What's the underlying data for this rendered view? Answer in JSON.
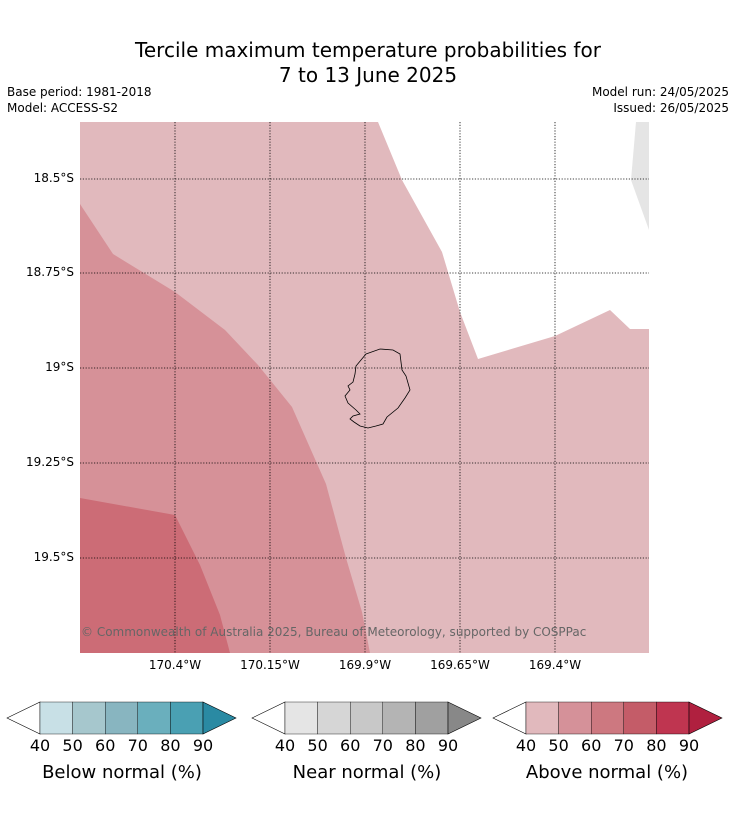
{
  "title_line1": "Tercile maximum temperature probabilities for",
  "title_line2": "7 to 13 June 2025",
  "base_period": "Base period: 1981-2018",
  "model": "Model: ACCESS-S2",
  "model_run": "Model run: 24/05/2025",
  "issued": "Issued: 26/05/2025",
  "lat_labels": [
    "18.5°S",
    "18.75°S",
    "19°S",
    "19.25°S",
    "19.5°S"
  ],
  "lon_labels": [
    "170.4°W",
    "170.15°W",
    "169.9°W",
    "169.65°W",
    "169.4°W"
  ],
  "copyright": "© Commonwealth of Australia 2025, Bureau of Meteorology, supported by COSPPac",
  "colorbars": [
    {
      "label": "Below normal (%)",
      "ticks": [
        "40",
        "50",
        "60",
        "70",
        "80",
        "90"
      ],
      "colors": [
        "#c8e0e6",
        "#a6c7cd",
        "#88b5c0",
        "#6aafbd",
        "#4aa0b3",
        "#2a8aa3"
      ]
    },
    {
      "label": "Near normal (%)",
      "ticks": [
        "40",
        "50",
        "60",
        "70",
        "80",
        "90"
      ],
      "colors": [
        "#e5e5e5",
        "#d6d6d6",
        "#c8c8c8",
        "#b4b4b4",
        "#a0a0a0",
        "#888888"
      ]
    },
    {
      "label": "Above normal (%)",
      "ticks": [
        "40",
        "50",
        "60",
        "70",
        "80",
        "90"
      ],
      "colors": [
        "#e1b9bd",
        "#d59199",
        "#cd7880",
        "#c45c68",
        "#bf3550",
        "#b0203f"
      ]
    }
  ],
  "map_colors": {
    "above_40_50": "#e1b9bd",
    "above_50_60": "#d69198",
    "above_60_70": "#cc6c76",
    "near_40_50": "#e5e5e5"
  }
}
